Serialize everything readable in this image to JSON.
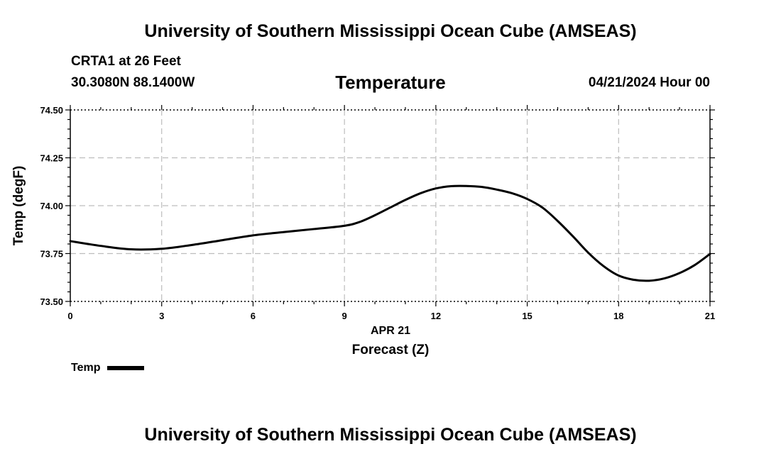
{
  "header": {
    "top_title": "University of Southern Mississippi Ocean Cube (AMSEAS)",
    "bottom_title": "University of Southern Mississippi Ocean Cube (AMSEAS)",
    "station": "CRTA1 at 26 Feet",
    "coords": "30.3080N  88.1400W",
    "datetime": "04/21/2024 Hour 00"
  },
  "chart_data": {
    "type": "line",
    "title": "Temperature",
    "xlabel": "Forecast (Z)",
    "date_label": "APR 21",
    "ylabel": "Temp (degF)",
    "xlim": [
      0,
      21
    ],
    "ylim": [
      73.5,
      74.5
    ],
    "x_ticks": [
      0,
      3,
      6,
      9,
      12,
      15,
      18,
      21
    ],
    "x_tick_labels": [
      "0",
      "3",
      "6",
      "9",
      "12",
      "15",
      "18",
      "21"
    ],
    "y_ticks": [
      73.5,
      73.75,
      74.0,
      74.25,
      74.5
    ],
    "y_tick_labels": [
      "73.50",
      "73.75",
      "74.00",
      "74.25",
      "74.50"
    ],
    "grid": true,
    "legend": "bottom-left",
    "series": [
      {
        "name": "Temp",
        "color": "#000000",
        "x": [
          0,
          1,
          2,
          3,
          4,
          5,
          6,
          7,
          8,
          9,
          9.5,
          10,
          10.5,
          11,
          11.5,
          12,
          12.5,
          13,
          13.5,
          14,
          14.5,
          15,
          15.5,
          16,
          16.5,
          17,
          17.5,
          18,
          18.5,
          19,
          19.5,
          20,
          20.5,
          21
        ],
        "values": [
          73.815,
          73.79,
          73.772,
          73.775,
          73.795,
          73.82,
          73.845,
          73.862,
          73.878,
          73.895,
          73.915,
          73.95,
          73.99,
          74.03,
          74.065,
          74.09,
          74.102,
          74.103,
          74.098,
          74.084,
          74.065,
          74.035,
          73.99,
          73.92,
          73.84,
          73.755,
          73.685,
          73.635,
          73.613,
          73.608,
          73.62,
          73.648,
          73.69,
          73.748
        ]
      }
    ]
  }
}
